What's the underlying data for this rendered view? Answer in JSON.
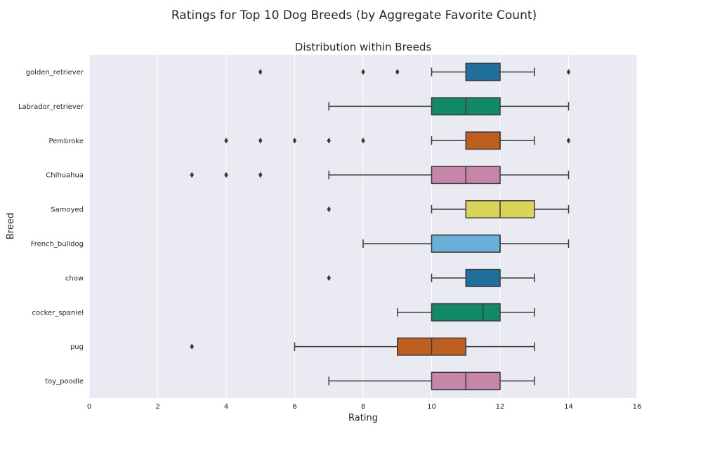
{
  "chart_data": {
    "type": "boxplot",
    "orientation": "horizontal",
    "suptitle": "Ratings for Top 10 Dog Breeds (by Aggregate Favorite Count)",
    "title": "Distribution within Breeds",
    "xlabel": "Rating",
    "ylabel": "Breed",
    "xlim": [
      0,
      16
    ],
    "xticks": [
      0,
      2,
      4,
      6,
      8,
      10,
      12,
      14,
      16
    ],
    "grid": true,
    "style": "seaborn-darkgrid",
    "colors": {
      "background": "#eaeaf2",
      "grid": "#ffffff",
      "line": "#3a3a3a"
    },
    "categories": [
      "golden_retriever",
      "Labrador_retriever",
      "Pembroke",
      "Chihuahua",
      "Samoyed",
      "French_bulldog",
      "chow",
      "cocker_spaniel",
      "pug",
      "toy_poodle"
    ],
    "boxes": [
      {
        "breed": "golden_retriever",
        "whisker_low": 10,
        "q1": 11,
        "median": 11,
        "q3": 12,
        "whisker_high": 13,
        "outliers": [
          5,
          8,
          9,
          14
        ],
        "color": "#1f6f9f"
      },
      {
        "breed": "Labrador_retriever",
        "whisker_low": 7,
        "q1": 10,
        "median": 11,
        "q3": 12,
        "whisker_high": 14,
        "outliers": [],
        "color": "#138a67"
      },
      {
        "breed": "Pembroke",
        "whisker_low": 10,
        "q1": 11,
        "median": 12,
        "q3": 12,
        "whisker_high": 13,
        "outliers": [
          4,
          5,
          6,
          7,
          8,
          14
        ],
        "color": "#bd5f1e"
      },
      {
        "breed": "Chihuahua",
        "whisker_low": 7,
        "q1": 10,
        "median": 11,
        "q3": 12,
        "whisker_high": 14,
        "outliers": [
          3,
          4,
          5
        ],
        "color": "#c686aa"
      },
      {
        "breed": "Samoyed",
        "whisker_low": 10,
        "q1": 11,
        "median": 12,
        "q3": 13,
        "whisker_high": 14,
        "outliers": [
          7
        ],
        "color": "#dad459"
      },
      {
        "breed": "French_bulldog",
        "whisker_low": 8,
        "q1": 10,
        "median": 12,
        "q3": 12,
        "whisker_high": 14,
        "outliers": [],
        "color": "#69b0d9"
      },
      {
        "breed": "chow",
        "whisker_low": 10,
        "q1": 11,
        "median": 11,
        "q3": 12,
        "whisker_high": 13,
        "outliers": [
          7
        ],
        "color": "#1f6f9f"
      },
      {
        "breed": "cocker_spaniel",
        "whisker_low": 9,
        "q1": 10,
        "median": 11.5,
        "q3": 12,
        "whisker_high": 13,
        "outliers": [],
        "color": "#138a67"
      },
      {
        "breed": "pug",
        "whisker_low": 6,
        "q1": 9,
        "median": 10,
        "q3": 11,
        "whisker_high": 13,
        "outliers": [
          3
        ],
        "color": "#bd5f1e"
      },
      {
        "breed": "toy_poodle",
        "whisker_low": 7,
        "q1": 10,
        "median": 11,
        "q3": 12,
        "whisker_high": 13,
        "outliers": [],
        "color": "#c686aa"
      }
    ]
  }
}
